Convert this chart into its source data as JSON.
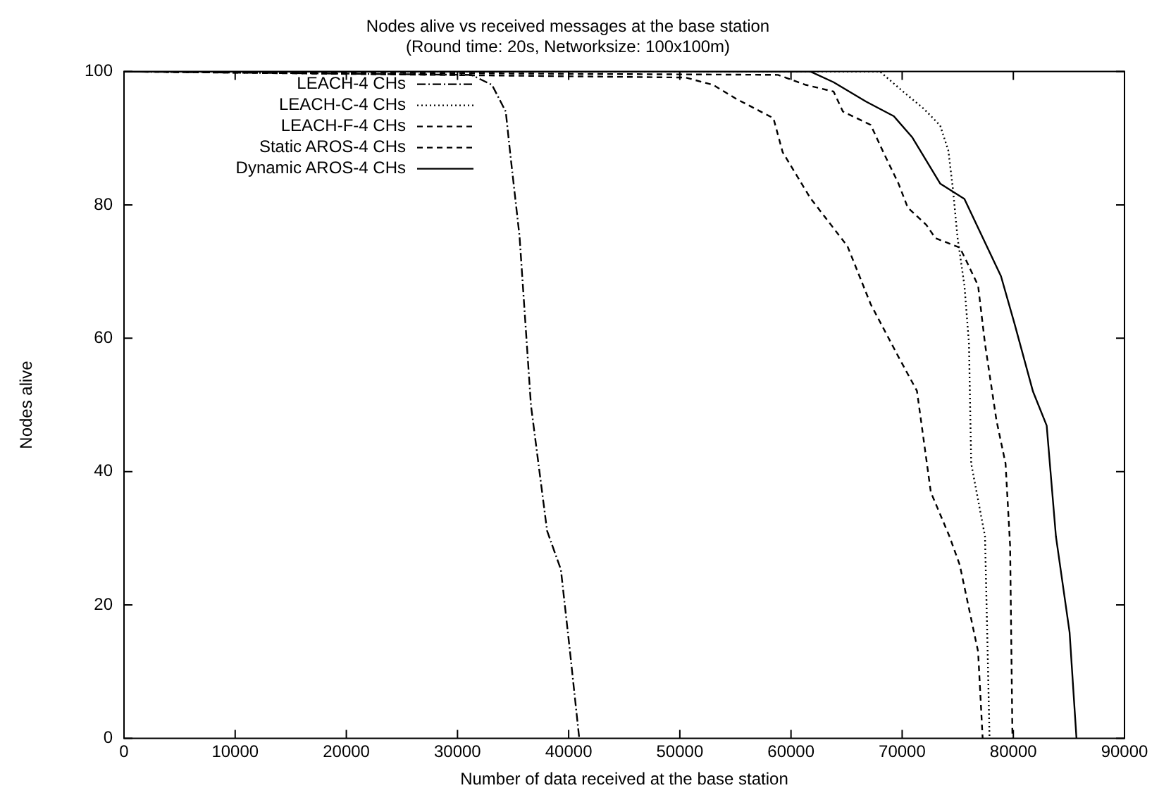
{
  "chart_data": {
    "type": "line",
    "title": "Nodes alive vs received messages at the base station",
    "subtitle": "(Round time: 20s, Networksize: 100x100m)",
    "xlabel": "Number of data received at the base station",
    "ylabel": "Nodes alive",
    "xlim": [
      0,
      90000
    ],
    "xticks": [
      0,
      10000,
      20000,
      30000,
      40000,
      50000,
      60000,
      70000,
      80000,
      90000
    ],
    "ylim": [
      0,
      100
    ],
    "yticks": [
      0,
      20,
      40,
      60,
      80,
      100
    ],
    "grid": false,
    "legend": "top left",
    "marker": "none",
    "series": [
      {
        "name": "LEACH-4 CHs",
        "color": "#000000",
        "line_style": "dashdot",
        "x": [
          0,
          31240,
          33100,
          34340,
          34750,
          35580,
          36610,
          38060,
          39300,
          40120,
          40950
        ],
        "values": [
          100,
          99.5,
          98,
          94,
          87.6,
          75.3,
          49.9,
          31.1,
          25.3,
          13,
          0
        ]
      },
      {
        "name": "LEACH-C-4 CHs",
        "color": "#000000",
        "line_style": "dotted",
        "x": [
          0,
          68000,
          70080,
          71960,
          73420,
          74160,
          74570,
          74980,
          75600,
          76010,
          76210,
          77450,
          77650,
          77860
        ],
        "values": [
          100,
          100,
          97,
          94.4,
          91.9,
          88.1,
          82.3,
          75.1,
          67.9,
          59.2,
          41.2,
          30.3,
          15.9,
          0
        ]
      },
      {
        "name": "LEACH-F-4 CHs",
        "color": "#000000",
        "line_style": "dashed",
        "x": [
          0,
          58830,
          61330,
          63830,
          64670,
          67170,
          68420,
          69670,
          70500,
          72170,
          73000,
          75180,
          75600,
          76830,
          77450,
          78480,
          79300,
          79710,
          79920
        ],
        "values": [
          100,
          99.5,
          98,
          97,
          94,
          92,
          87.5,
          83.2,
          79.6,
          77,
          75,
          73.6,
          72.2,
          67.9,
          59.2,
          47.7,
          41.2,
          28.9,
          0
        ]
      },
      {
        "name": "Static AROS-4 CHs",
        "color": "#000000",
        "line_style": "dashed",
        "x": [
          0,
          50500,
          53000,
          55080,
          58420,
          59250,
          61750,
          65080,
          67170,
          69670,
          71330,
          72580,
          74250,
          75180,
          76830,
          77240
        ],
        "values": [
          100,
          99.1,
          98,
          95.9,
          93,
          87.9,
          81,
          73.8,
          65.1,
          57.2,
          52.1,
          36.9,
          30.3,
          26,
          13,
          0
        ]
      },
      {
        "name": "Dynamic AROS-4 CHs",
        "color": "#000000",
        "line_style": "solid",
        "x": [
          0,
          61750,
          63830,
          66750,
          69250,
          70920,
          73420,
          75600,
          77240,
          78890,
          80120,
          81770,
          83000,
          83830,
          85060,
          85680
        ],
        "values": [
          100,
          100,
          98.4,
          95.5,
          93.3,
          90.1,
          83.2,
          80.9,
          75.1,
          69.3,
          62.1,
          52,
          46.9,
          30.3,
          15.9,
          0
        ]
      }
    ]
  }
}
